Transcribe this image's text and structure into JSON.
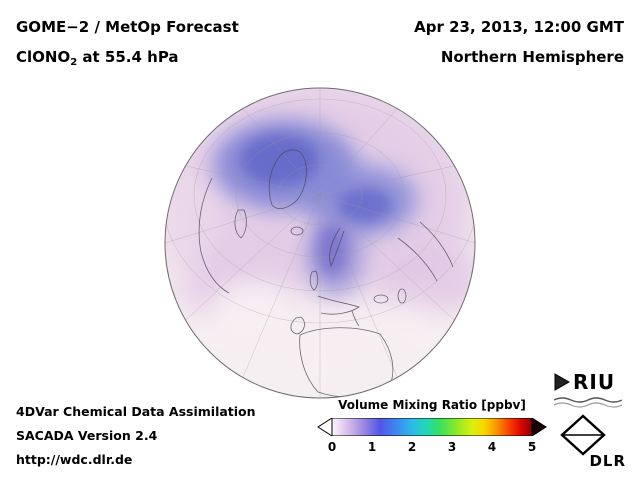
{
  "header": {
    "title_line1": "GOME−2 / MetOp Forecast",
    "title2_prefix": "ClONO",
    "title2_sub": "2",
    "title2_suffix": " at 55.4 hPa",
    "date_line": "Apr 23, 2013, 12:00 GMT",
    "region_line": "Northern Hemisphere"
  },
  "footer": {
    "line1": "4DVar Chemical Data Assimilation",
    "line2": "SACADA Version 2.4",
    "line3": "http://wdc.dlr.de"
  },
  "colorbar": {
    "title": "Volume Mixing Ratio [ppbv]",
    "ticks": [
      "0",
      "1",
      "2",
      "3",
      "4",
      "5"
    ]
  },
  "logos": {
    "riu": "RIU",
    "dlr": "DLR"
  },
  "chart_data": {
    "type": "heatmap",
    "title": "GOME−2 / MetOp Forecast ClONO2 at 55.4 hPa",
    "datetime": "Apr 23, 2013, 12:00 GMT",
    "region": "Northern Hemisphere",
    "projection": "orthographic globe, north polar view with graticule and coastlines",
    "variable": "ClONO2 volume mixing ratio",
    "units": "ppbv",
    "colorbar_label": "Volume Mixing Ratio [ppbv]",
    "range": [
      0,
      5
    ],
    "ticks": [
      0,
      1,
      2,
      3,
      4,
      5
    ],
    "colormap_stops": [
      {
        "pos": 0.0,
        "color": "#fdf8fd"
      },
      {
        "pos": 0.08,
        "color": "#d9bce9"
      },
      {
        "pos": 0.16,
        "color": "#9a86e2"
      },
      {
        "pos": 0.24,
        "color": "#5356e8"
      },
      {
        "pos": 0.32,
        "color": "#3f86f0"
      },
      {
        "pos": 0.4,
        "color": "#2fb8e8"
      },
      {
        "pos": 0.47,
        "color": "#20d8b8"
      },
      {
        "pos": 0.54,
        "color": "#38e060"
      },
      {
        "pos": 0.62,
        "color": "#8ae828"
      },
      {
        "pos": 0.7,
        "color": "#d8f010"
      },
      {
        "pos": 0.76,
        "color": "#f8d800"
      },
      {
        "pos": 0.82,
        "color": "#f89800"
      },
      {
        "pos": 0.88,
        "color": "#f84800"
      },
      {
        "pos": 0.94,
        "color": "#e00800"
      },
      {
        "pos": 1.0,
        "color": "#8a0000"
      }
    ],
    "estimated_field": [
      {
        "area": "low latitudes / bottom of disk (Africa, subtropics)",
        "value_ppbv": "0–0.3",
        "appearance": "pale pink-white"
      },
      {
        "area": "mid-latitude collar around pole",
        "value_ppbv": "0.3–0.8",
        "appearance": "violet"
      },
      {
        "area": "arc from Canadian Arctic across pole toward Siberia with tail down over Scandinavia / eastern Europe",
        "value_ppbv": "1.0–1.8",
        "appearance": "blue"
      },
      {
        "area": "cores inside the blue arc",
        "value_ppbv": "~1.5–2.0",
        "appearance": "darker blue"
      }
    ]
  }
}
